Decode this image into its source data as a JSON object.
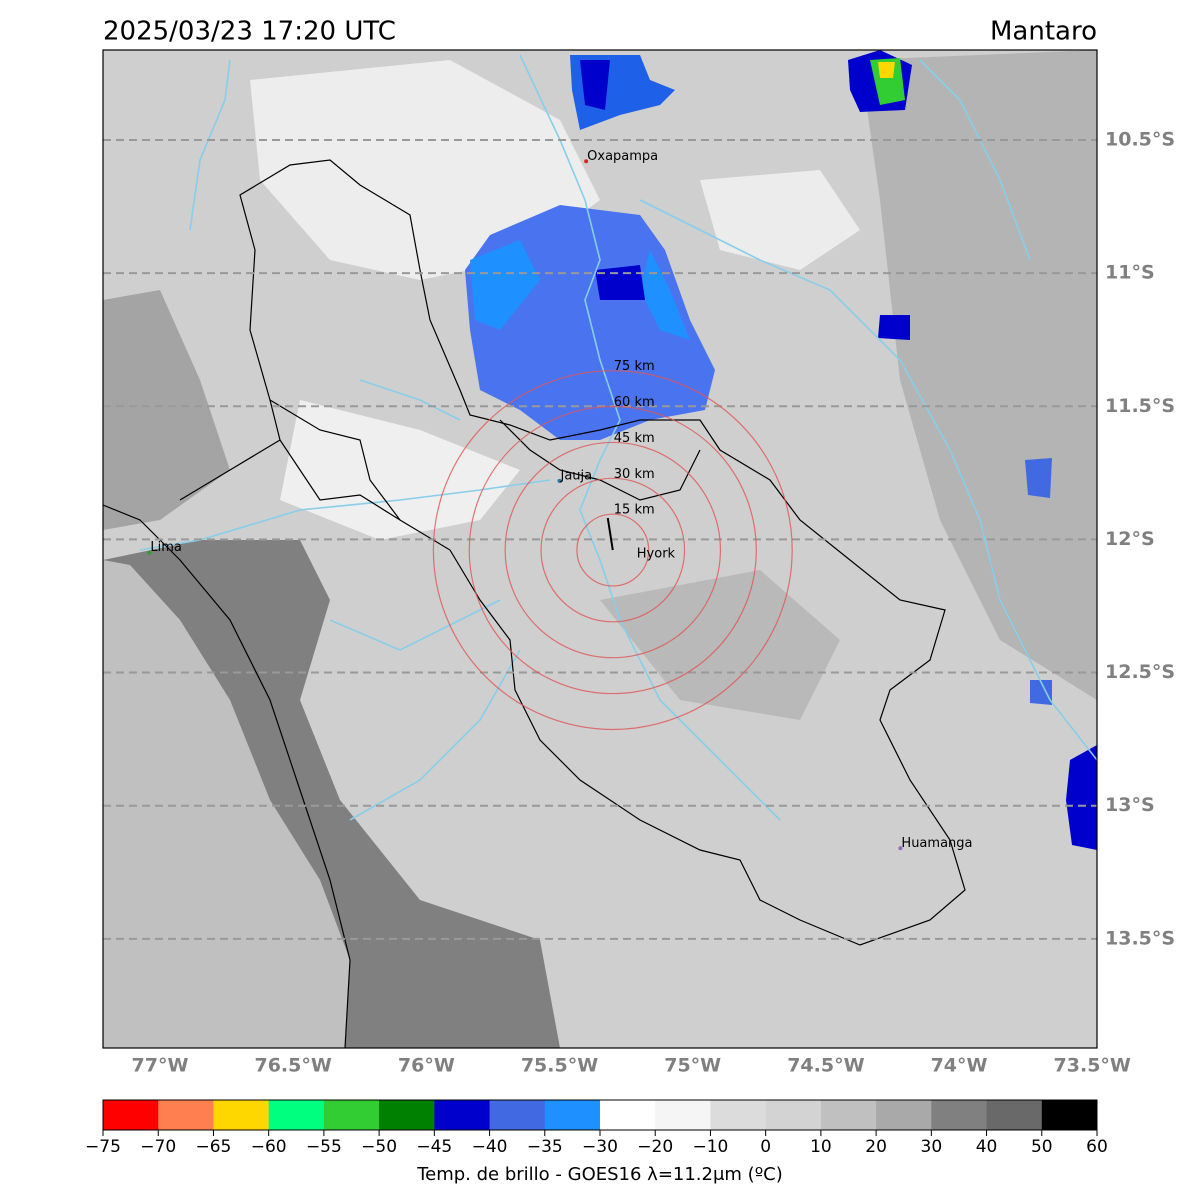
{
  "header": {
    "title": "2025/03/23 17:20 UTC",
    "region": "Mantaro"
  },
  "map": {
    "xlim": [
      -77.214,
      -73.482
    ],
    "ylim": [
      -13.91,
      -10.162
    ],
    "xticks": [
      {
        "value": -77,
        "label": "77°W"
      },
      {
        "value": -76.5,
        "label": "76.5°W"
      },
      {
        "value": -76,
        "label": "76°W"
      },
      {
        "value": -75.5,
        "label": "75.5°W"
      },
      {
        "value": -75,
        "label": "75°W"
      },
      {
        "value": -74.5,
        "label": "74.5°W"
      },
      {
        "value": -74,
        "label": "74°W"
      },
      {
        "value": -73.5,
        "label": "73.5°W"
      }
    ],
    "yticks": [
      {
        "value": -10.5,
        "label": "10.5°S"
      },
      {
        "value": -11,
        "label": "11°S"
      },
      {
        "value": -11.5,
        "label": "11.5°S"
      },
      {
        "value": -12,
        "label": "12°S"
      },
      {
        "value": -12.5,
        "label": "12.5°S"
      },
      {
        "value": -13,
        "label": "13°S"
      },
      {
        "value": -13.5,
        "label": "13.5°S"
      }
    ],
    "cities": [
      {
        "name": "Oxapampa",
        "lon": -75.4,
        "lat": -10.58,
        "color": "#d62728"
      },
      {
        "name": "Jauja",
        "lon": -75.5,
        "lat": -11.78,
        "color": "#1f77b4"
      },
      {
        "name": "Lima",
        "lon": -77.04,
        "lat": -12.05,
        "color": "#2ca02c"
      },
      {
        "name": "Huamanga",
        "lon": -74.22,
        "lat": -13.16,
        "color": "#9467bd"
      }
    ],
    "center": {
      "name": "Hyork",
      "lon": -75.3,
      "lat": -12.04
    },
    "rings": [
      {
        "value": 15,
        "label": "15 km"
      },
      {
        "value": 30,
        "label": "30 km"
      },
      {
        "value": 45,
        "label": "45 km"
      },
      {
        "value": 60,
        "label": "60 km"
      },
      {
        "value": 75,
        "label": "75 km"
      }
    ]
  },
  "colorbar": {
    "label": "Temp. de brillo - GOES16 λ=11.2μm (ºC)",
    "bounds": [
      {
        "value": -75,
        "label": "−75"
      },
      {
        "value": -70,
        "label": "−70"
      },
      {
        "value": -65,
        "label": "−65"
      },
      {
        "value": -60,
        "label": "−60"
      },
      {
        "value": -55,
        "label": "−55"
      },
      {
        "value": -50,
        "label": "−50"
      },
      {
        "value": -45,
        "label": "−45"
      },
      {
        "value": -40,
        "label": "−40"
      },
      {
        "value": -35,
        "label": "−35"
      },
      {
        "value": -30,
        "label": "−30"
      },
      {
        "value": -20,
        "label": "−20"
      },
      {
        "value": -10,
        "label": "−10"
      },
      0,
      10,
      20,
      30,
      40,
      50,
      60
    ],
    "colors": [
      "#ff0000",
      "#ff7f50",
      "#ffd700",
      "#00ff7f",
      "#32cd32",
      "#008000",
      "#0000cd",
      "#4169e1",
      "#1e90ff",
      "#ffffff",
      "#f5f5f5",
      "#dcdcdc",
      "#d3d3d3",
      "#c0c0c0",
      "#a9a9a9",
      "#808080",
      "#696969",
      "#000000"
    ]
  }
}
